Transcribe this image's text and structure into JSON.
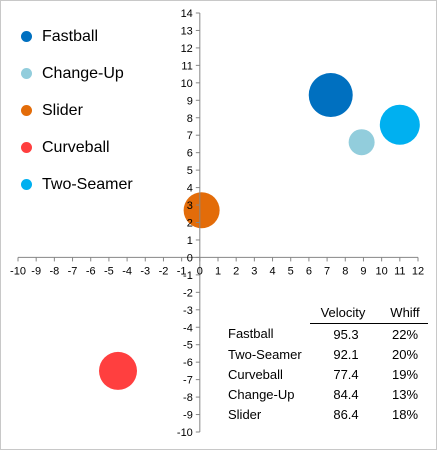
{
  "chart_data": {
    "type": "bubble",
    "xlim": [
      -10,
      12
    ],
    "ylim": [
      -10,
      14
    ],
    "x_ticks": [
      -10,
      -9,
      -8,
      -7,
      -6,
      -5,
      -4,
      -3,
      -2,
      -1,
      0,
      1,
      2,
      3,
      4,
      5,
      6,
      7,
      8,
      9,
      10,
      11,
      12
    ],
    "y_ticks": [
      -10,
      -9,
      -8,
      -7,
      -6,
      -5,
      -4,
      -3,
      -2,
      -1,
      0,
      1,
      2,
      3,
      4,
      5,
      6,
      7,
      8,
      9,
      10,
      11,
      12,
      13,
      14
    ],
    "grid": false,
    "legend_position": "top-left",
    "series": [
      {
        "name": "Fastball",
        "x": 7.2,
        "y": 9.3,
        "size": 22,
        "color": "#0070c0"
      },
      {
        "name": "Change-Up",
        "x": 8.9,
        "y": 6.6,
        "size": 13,
        "color": "#92cddc"
      },
      {
        "name": "Slider",
        "x": 0.1,
        "y": 2.7,
        "size": 18,
        "color": "#e36c09"
      },
      {
        "name": "Curveball",
        "x": -4.5,
        "y": -6.5,
        "size": 19,
        "color": "#ff3f3f"
      },
      {
        "name": "Two-Seamer",
        "x": 11.0,
        "y": 7.6,
        "size": 20,
        "color": "#00b0f0"
      }
    ]
  },
  "table": {
    "headers": [
      "",
      "Velocity",
      "Whiff"
    ],
    "rows": [
      [
        "Fastball",
        "95.3",
        "22%"
      ],
      [
        "Two-Seamer",
        "92.1",
        "20%"
      ],
      [
        "Curveball",
        "77.4",
        "19%"
      ],
      [
        "Change-Up",
        "84.4",
        "13%"
      ],
      [
        "Slider",
        "86.4",
        "18%"
      ]
    ]
  }
}
